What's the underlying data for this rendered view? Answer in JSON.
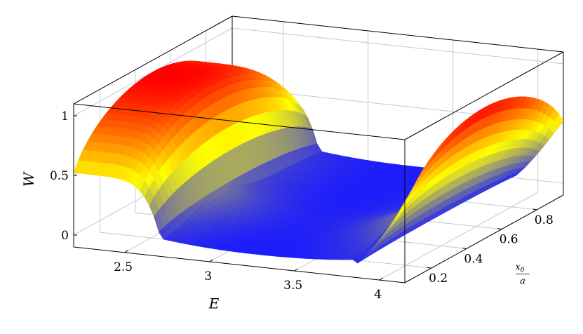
{
  "chart_data": {
    "type": "surface3d",
    "title": "",
    "xlabel": "E",
    "ylabel_numerator": "x0",
    "ylabel_denominator": "a",
    "zlabel": "W",
    "xlim": [
      2.2,
      4.15
    ],
    "ylim": [
      0.05,
      0.95
    ],
    "zlim": [
      -0.1,
      1.1
    ],
    "x_ticks": [
      "2.5",
      "3",
      "3.5",
      "4"
    ],
    "y_ticks": [
      "0.2",
      "0.4",
      "0.6",
      "0.8"
    ],
    "z_ticks": [
      "0",
      "0.5",
      "1"
    ],
    "grid": true,
    "colormap": [
      "#1a1aff",
      "#ffff00",
      "#ff0000"
    ],
    "series": [
      {
        "band": "low",
        "E_range": [
          2.2,
          2.72
        ],
        "W_peak_at_x0": [
          [
            0.1,
            0.0
          ],
          [
            0.3,
            0.95
          ],
          [
            0.5,
            1.0
          ],
          [
            0.7,
            0.97
          ],
          [
            0.9,
            0.05
          ]
        ]
      },
      {
        "band": "high",
        "E_range": [
          3.85,
          4.15
        ],
        "W_peak_at_x0": [
          [
            0.1,
            0.0
          ],
          [
            0.3,
            0.9
          ],
          [
            0.5,
            1.0
          ],
          [
            0.7,
            0.95
          ],
          [
            0.9,
            0.1
          ]
        ]
      }
    ]
  }
}
